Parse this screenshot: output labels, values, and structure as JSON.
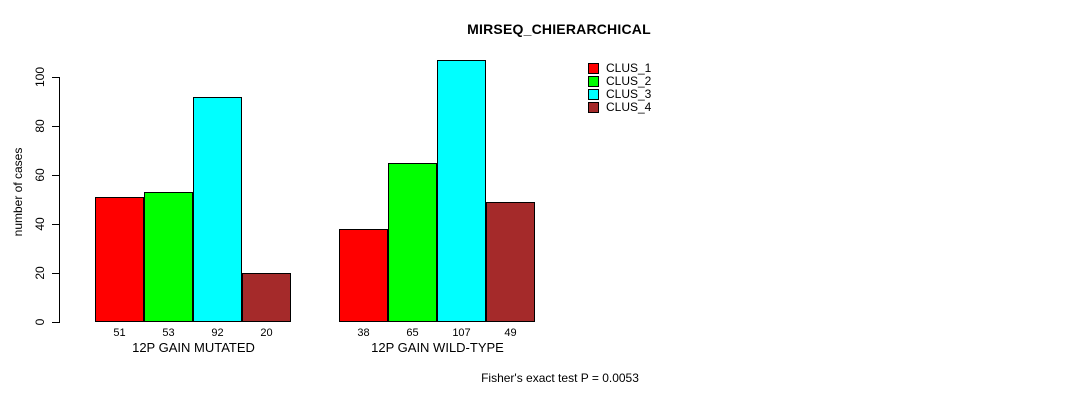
{
  "chart_data": {
    "type": "bar",
    "title": "MIRSEQ_CHIERARCHICAL",
    "ylabel": "number of cases",
    "xlabel": "",
    "ylim": [
      0,
      110
    ],
    "yticks": [
      0,
      20,
      40,
      60,
      80,
      100
    ],
    "grid": false,
    "annotation": "Fisher's exact test P = 0.0053",
    "categories": [
      "12P GAIN MUTATED",
      "12P GAIN WILD-TYPE"
    ],
    "series": [
      {
        "name": "CLUS_1",
        "color": "#FF0000",
        "values": [
          51,
          38
        ]
      },
      {
        "name": "CLUS_2",
        "color": "#00FF00",
        "values": [
          53,
          65
        ]
      },
      {
        "name": "CLUS_3",
        "color": "#00FFFF",
        "values": [
          92,
          107
        ]
      },
      {
        "name": "CLUS_4",
        "color": "#A52A2A",
        "values": [
          20,
          49
        ]
      }
    ],
    "bar_value_labels": [
      [
        51,
        53,
        92,
        20
      ],
      [
        38,
        65,
        107,
        49
      ]
    ],
    "legend": {
      "position": "top-right",
      "entries": [
        "CLUS_1",
        "CLUS_2",
        "CLUS_3",
        "CLUS_4"
      ]
    },
    "colors": {
      "background": "#FFFFFF",
      "axis": "#000000",
      "text": "#000000"
    }
  }
}
